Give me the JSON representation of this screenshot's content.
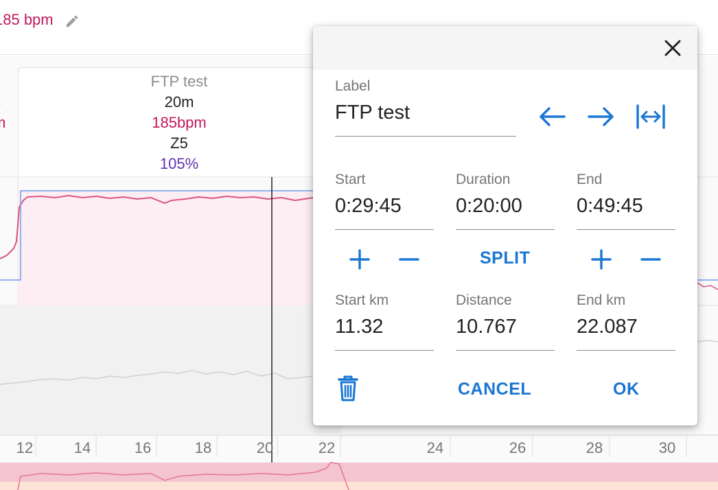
{
  "header": {
    "avg_hr_label": "185 bpm",
    "edit_icon": "pencil-icon"
  },
  "segment": {
    "name": "FTP test",
    "duration": "20m",
    "heart_rate": "185bpm",
    "zone": "Z5",
    "intensity": "105%"
  },
  "left_segment_partial": {
    "line1": "s",
    "line2": "m"
  },
  "x_axis": {
    "ticks": [
      "12",
      "14",
      "16",
      "18",
      "20",
      "22",
      "24",
      "26",
      "28",
      "30"
    ]
  },
  "dialog": {
    "close_icon": "close-icon",
    "label": {
      "caption": "Label",
      "value": "FTP test"
    },
    "nav_icons": [
      "arrow-left-icon",
      "arrow-right-icon",
      "expand-horizontal-icon"
    ],
    "start": {
      "caption": "Start",
      "value": "0:29:45"
    },
    "duration": {
      "caption": "Duration",
      "value": "0:20:00"
    },
    "end": {
      "caption": "End",
      "value": "0:49:45"
    },
    "split_label": "SPLIT",
    "start_km": {
      "caption": "Start km",
      "value": "11.32"
    },
    "distance": {
      "caption": "Distance",
      "value": "10.767"
    },
    "end_km": {
      "caption": "End km",
      "value": "22.087"
    },
    "delete_icon": "trash-icon",
    "cancel_label": "CANCEL",
    "ok_label": "OK"
  },
  "colors": {
    "accent": "#1976d2",
    "heart_rate": "#c2185b",
    "intensity": "#5e35b1",
    "power_line": "#d9537f",
    "target_line": "#6d9eeb"
  }
}
